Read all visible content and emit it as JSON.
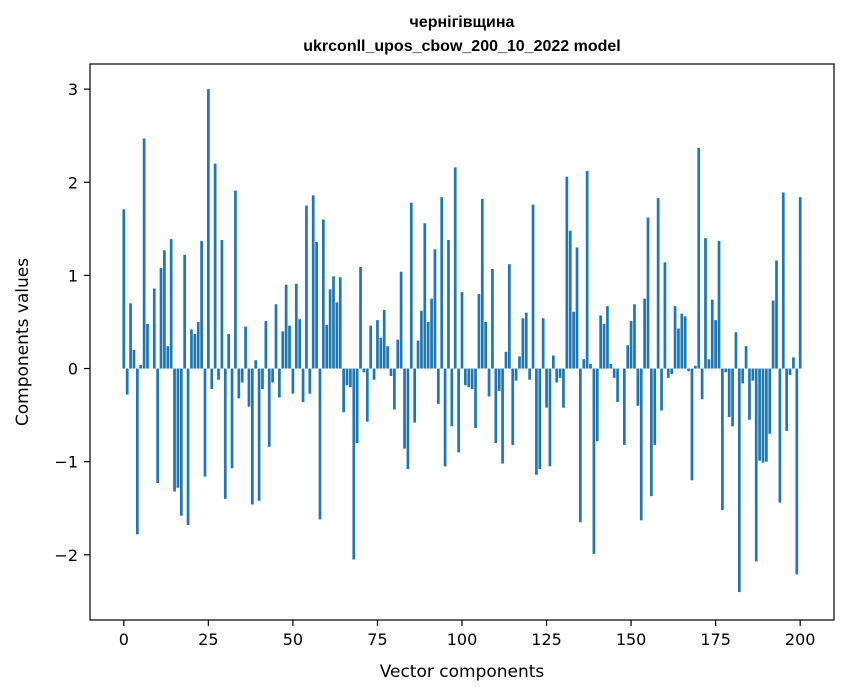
{
  "chart_data": {
    "type": "bar",
    "title": [
      "чернігівщина",
      "ukrconll_upos_cbow_200_10_2022 model"
    ],
    "xlabel": "Vector components",
    "ylabel": "Components values",
    "xlim": [
      -10,
      210
    ],
    "ylim": [
      -2.7,
      3.27
    ],
    "xticks": [
      0,
      25,
      50,
      75,
      100,
      125,
      150,
      175,
      200
    ],
    "yticks": [
      -2,
      -1,
      0,
      1,
      2,
      3
    ],
    "ytick_labels": [
      "−2",
      "−1",
      "0",
      "1",
      "2",
      "3"
    ],
    "grid": false,
    "bar_color": "#1f77b4",
    "values": [
      1.71,
      -0.28,
      0.7,
      0.2,
      -1.78,
      0.04,
      2.47,
      0.48,
      0.0,
      0.86,
      -1.23,
      1.08,
      1.27,
      0.24,
      1.39,
      -1.32,
      -1.28,
      -1.58,
      1.22,
      -1.68,
      0.42,
      0.37,
      0.5,
      1.37,
      -1.16,
      3.0,
      -0.22,
      2.2,
      -0.12,
      1.38,
      -1.4,
      0.37,
      -1.07,
      1.91,
      -0.32,
      -0.15,
      0.45,
      -0.41,
      -1.46,
      0.09,
      -1.42,
      -0.22,
      0.51,
      -0.84,
      -0.15,
      0.69,
      -0.31,
      0.4,
      0.9,
      0.46,
      -0.27,
      0.91,
      0.53,
      -0.36,
      1.75,
      -0.27,
      1.86,
      1.36,
      -1.62,
      1.6,
      0.47,
      0.85,
      0.99,
      0.71,
      0.98,
      -0.47,
      -0.18,
      -0.2,
      -2.05,
      -0.8,
      1.09,
      -0.04,
      -0.57,
      0.46,
      -0.12,
      0.52,
      0.33,
      0.63,
      0.24,
      -0.08,
      -0.44,
      0.31,
      1.04,
      -0.86,
      -1.08,
      1.78,
      -0.58,
      0.3,
      0.62,
      1.56,
      0.5,
      0.75,
      1.28,
      -0.38,
      1.84,
      -1.05,
      1.38,
      -0.62,
      2.16,
      -0.9,
      0.82,
      -0.18,
      -0.2,
      -0.22,
      -0.64,
      0.8,
      1.82,
      0.5,
      -0.3,
      1.07,
      -0.8,
      -0.24,
      -1.02,
      0.18,
      1.12,
      -0.82,
      -0.13,
      0.13,
      0.54,
      0.6,
      -0.12,
      1.76,
      -1.14,
      -1.08,
      0.54,
      -0.42,
      -1.05,
      0.14,
      -0.15,
      -0.1,
      -0.42,
      2.06,
      1.48,
      0.61,
      1.3,
      -1.65,
      0.1,
      2.12,
      0.05,
      -1.99,
      -0.78,
      0.57,
      0.48,
      0.67,
      0.05,
      -0.1,
      -0.36,
      0.0,
      -0.82,
      0.25,
      0.51,
      0.69,
      -0.4,
      -1.63,
      0.75,
      1.62,
      -1.37,
      -0.82,
      1.83,
      -0.45,
      1.14,
      -0.1,
      -0.06,
      0.67,
      0.43,
      0.59,
      0.56,
      -0.03,
      -1.2,
      0.03,
      2.37,
      -0.33,
      1.4,
      0.1,
      0.74,
      0.52,
      1.37,
      -1.52,
      -0.04,
      -0.52,
      -0.62,
      0.39,
      -2.4,
      -0.16,
      0.24,
      -0.55,
      -0.13,
      -2.07,
      -0.99,
      -1.01,
      -1.0,
      -0.7,
      0.73,
      1.16,
      -1.44,
      1.89,
      -0.67,
      -0.07,
      0.12,
      -2.21,
      1.84
    ]
  }
}
